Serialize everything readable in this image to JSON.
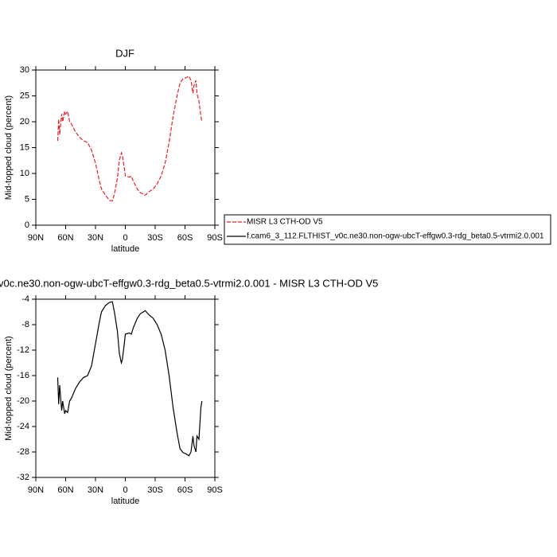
{
  "chart_data": [
    {
      "type": "line",
      "title": "DJF",
      "xlabel": "latitude",
      "ylabel": "Mid-topped cloud (percent)",
      "x": [
        68,
        67,
        66,
        64,
        63,
        61,
        60,
        58,
        56,
        54,
        50,
        46,
        42,
        38,
        34,
        30,
        26,
        24,
        20,
        16,
        13,
        11,
        8,
        6,
        4,
        3,
        1,
        0,
        -4,
        -6,
        -8,
        -12,
        -15,
        -18,
        -20,
        -24,
        -28,
        -32,
        -36,
        -40,
        -44,
        -48,
        -52,
        -55,
        -58,
        -61,
        -64,
        -66,
        -68,
        -69,
        -71,
        -72,
        -74,
        -76,
        -77
      ],
      "series": [
        {
          "color": "#e8202a",
          "dash": true,
          "values": [
            16.3,
            20.5,
            17.5,
            21.5,
            20,
            22,
            21.5,
            22,
            20,
            19.5,
            18,
            17,
            16.3,
            16,
            14.5,
            12,
            8.5,
            7,
            5.8,
            4.8,
            4.7,
            6,
            9,
            12.5,
            14,
            13.5,
            11,
            9.5,
            9.3,
            9.5,
            8.5,
            7,
            6.3,
            6,
            5.8,
            6.5,
            7,
            8,
            9.5,
            12,
            16,
            21,
            25,
            27.5,
            28.3,
            28.5,
            28.8,
            28,
            25.5,
            27,
            28,
            25.5,
            24,
            21,
            20
          ]
        }
      ],
      "legend": [
        {
          "name": "MISR L3 CTH-OD V5",
          "color": "#e8202a",
          "dash": true
        },
        {
          "name": "f.cam6_3_112.FLTHIST_v0c.ne30.non-ogw-ubcT-effgw0.3-rdg_beta0.5-vtrmi2.0.001",
          "color": "#000000",
          "dash": false
        }
      ],
      "xlim": [
        90,
        -90
      ],
      "xticks": [
        {
          "value": 90,
          "label": "90N"
        },
        {
          "value": 60,
          "label": "60N"
        },
        {
          "value": 30,
          "label": "30N"
        },
        0,
        {
          "value": -30,
          "label": "30S"
        },
        {
          "value": -60,
          "label": "60S"
        },
        {
          "value": -90,
          "label": "90S"
        }
      ],
      "ylim": [
        0,
        30
      ],
      "yticks": [
        0,
        5,
        10,
        15,
        20,
        25,
        30
      ]
    },
    {
      "type": "line",
      "title": "v0c.ne30.non-ogw-ubcT-effgw0.3-rdg_beta0.5-vtrmi2.0.001 - MISR L3 CTH-OD V5",
      "xlabel": "latitude",
      "ylabel": "Mid-topped cloud (percent)",
      "x": [
        68,
        67,
        66,
        64,
        63,
        61,
        60,
        58,
        56,
        54,
        50,
        46,
        42,
        38,
        34,
        30,
        26,
        24,
        20,
        16,
        13,
        11,
        8,
        6,
        4,
        3,
        1,
        0,
        -4,
        -6,
        -8,
        -12,
        -15,
        -18,
        -20,
        -24,
        -28,
        -32,
        -36,
        -40,
        -44,
        -48,
        -52,
        -55,
        -58,
        -61,
        -64,
        -66,
        -68,
        -69,
        -71,
        -72,
        -74,
        -76,
        -77
      ],
      "series": [
        {
          "color": "#000000",
          "dash": false,
          "values": [
            -16.3,
            -20.5,
            -17.5,
            -21.5,
            -20,
            -22,
            -21.5,
            -21.8,
            -20,
            -19.5,
            -18,
            -17,
            -16.3,
            -16,
            -14.5,
            -11,
            -7.5,
            -6,
            -5,
            -4.5,
            -4.4,
            -6,
            -9,
            -12.5,
            -14,
            -13.5,
            -11,
            -9.5,
            -9.3,
            -9.5,
            -8.5,
            -7,
            -6.3,
            -6,
            -5.8,
            -6.5,
            -7,
            -8,
            -9.5,
            -12,
            -16,
            -21,
            -25,
            -27.5,
            -28.1,
            -28.3,
            -28.6,
            -28,
            -25.5,
            -27,
            -28,
            -25.5,
            -26,
            -21,
            -20
          ]
        }
      ],
      "xlim": [
        90,
        -90
      ],
      "xticks": [
        {
          "value": 90,
          "label": "90N"
        },
        {
          "value": 60,
          "label": "60N"
        },
        {
          "value": 30,
          "label": "30N"
        },
        0,
        {
          "value": -30,
          "label": "30S"
        },
        {
          "value": -60,
          "label": "60S"
        },
        {
          "value": -90,
          "label": "90S"
        }
      ],
      "ylim": [
        -32,
        -4
      ],
      "yticks": [
        -32,
        -28,
        -24,
        -20,
        -16,
        -12,
        -8,
        -4
      ]
    }
  ]
}
